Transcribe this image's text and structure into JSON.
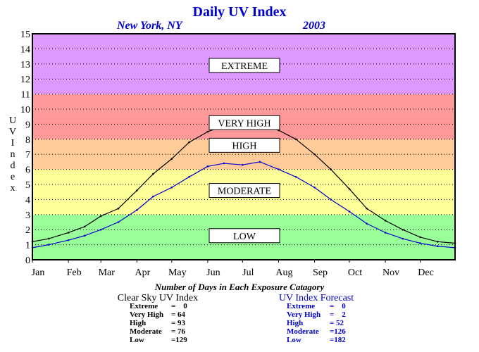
{
  "chart_data": {
    "type": "line",
    "title": "Daily UV Index",
    "location": "New York, NY",
    "year": "2003",
    "ylabel": "UV Index",
    "ylim": [
      0,
      15
    ],
    "yticks": [
      0,
      1,
      2,
      3,
      4,
      5,
      6,
      7,
      8,
      9,
      10,
      11,
      12,
      13,
      14,
      15
    ],
    "xlim": [
      1,
      365
    ],
    "months": [
      "Jan",
      "Feb",
      "Mar",
      "Apr",
      "May",
      "Jun",
      "Jul",
      "Aug",
      "Sep",
      "Oct",
      "Nov",
      "Dec"
    ],
    "month_start_days": [
      1,
      32,
      60,
      91,
      121,
      152,
      182,
      213,
      244,
      274,
      305,
      335
    ],
    "grid": true,
    "bands": [
      {
        "label": "LOW",
        "from": 0,
        "to": 3,
        "color": "#99ff99",
        "label_value": 1.6
      },
      {
        "label": "MODERATE",
        "from": 3,
        "to": 6,
        "color": "#ffff99",
        "label_value": 4.6
      },
      {
        "label": "HIGH",
        "from": 6,
        "to": 8,
        "color": "#ffcc99",
        "label_value": 7.6
      },
      {
        "label": "VERY HIGH",
        "from": 8,
        "to": 11,
        "color": "#ff9999",
        "label_value": 9.1
      },
      {
        "label": "EXTREME",
        "from": 11,
        "to": 15,
        "color": "#dd99ff",
        "label_value": 12.9
      }
    ],
    "series": [
      {
        "name": "Clear Sky UV Index",
        "color": "#000000",
        "x": [
          1,
          15,
          32,
          46,
          60,
          75,
          91,
          105,
          121,
          136,
          152,
          166,
          182,
          197,
          213,
          228,
          244,
          258,
          274,
          289,
          305,
          320,
          335,
          350,
          365
        ],
        "values": [
          1.2,
          1.4,
          1.8,
          2.2,
          2.9,
          3.4,
          4.6,
          5.7,
          6.7,
          7.8,
          8.5,
          8.9,
          8.8,
          8.9,
          8.6,
          8.0,
          7.0,
          6.0,
          4.7,
          3.4,
          2.6,
          2.0,
          1.5,
          1.2,
          1.1
        ]
      },
      {
        "name": "UV Index Forecast",
        "color": "#0000cc",
        "x": [
          1,
          15,
          32,
          46,
          60,
          75,
          91,
          105,
          121,
          136,
          152,
          166,
          182,
          197,
          213,
          228,
          244,
          258,
          274,
          289,
          305,
          320,
          335,
          350,
          365
        ],
        "values": [
          0.8,
          1.0,
          1.3,
          1.6,
          2.0,
          2.5,
          3.3,
          4.2,
          4.8,
          5.5,
          6.2,
          6.4,
          6.3,
          6.5,
          6.0,
          5.5,
          4.8,
          4.0,
          3.2,
          2.4,
          1.8,
          1.4,
          1.1,
          0.9,
          0.8
        ]
      }
    ]
  },
  "summary": {
    "caption": "Number of Days in Each Exposure Catagory",
    "clear_sky": {
      "title": "Clear Sky UV Index",
      "rows": [
        {
          "label": "Extreme",
          "value": "=    0"
        },
        {
          "label": "Very High",
          "value": "= 64"
        },
        {
          "label": "High",
          "value": "= 93"
        },
        {
          "label": "Moderate",
          "value": "= 76"
        },
        {
          "label": "Low",
          "value": "=129"
        }
      ]
    },
    "forecast": {
      "title": "UV Index Forecast",
      "rows": [
        {
          "label": "Extreme",
          "value": "=    0"
        },
        {
          "label": "Very High",
          "value": "=    2"
        },
        {
          "label": "High",
          "value": "= 52"
        },
        {
          "label": "Moderate",
          "value": "=126"
        },
        {
          "label": "Low",
          "value": "=182"
        }
      ]
    }
  }
}
